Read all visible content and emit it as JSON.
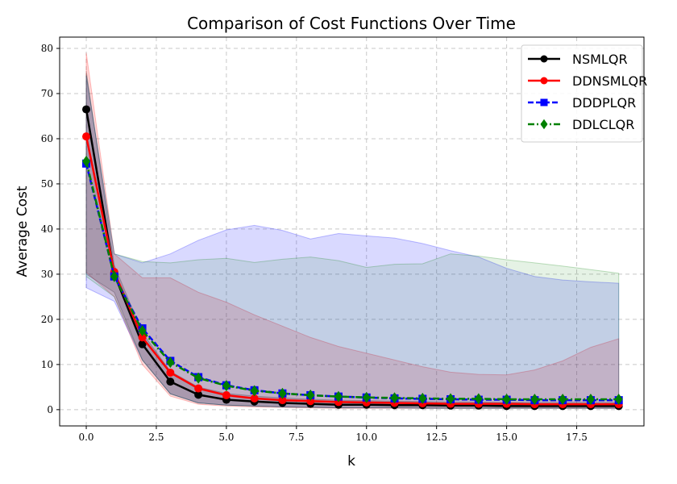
{
  "chart_data": {
    "type": "line",
    "title": "Comparison of Cost Functions Over Time",
    "xlabel": "k",
    "ylabel": "Average Cost",
    "xlim": [
      -0.95,
      19.9
    ],
    "ylim": [
      -3.6,
      82.5
    ],
    "xticks": [
      "0.0",
      "2.5",
      "5.0",
      "7.5",
      "10.0",
      "12.5",
      "15.0",
      "17.5"
    ],
    "yticks": [
      "0",
      "10",
      "20",
      "30",
      "40",
      "50",
      "60",
      "70",
      "80"
    ],
    "grid": true,
    "legend_position": "top-right",
    "x": [
      0,
      1,
      2,
      3,
      4,
      5,
      6,
      7,
      8,
      9,
      10,
      11,
      12,
      13,
      14,
      15,
      16,
      17,
      18,
      19
    ],
    "series": [
      {
        "name": "NSMLQR",
        "color": "#000000",
        "linestyle": "solid",
        "marker": "circle",
        "values": [
          66.5,
          30,
          14.5,
          6.2,
          3.3,
          2.2,
          1.8,
          1.5,
          1.3,
          1.1,
          1.1,
          1.0,
          1.0,
          0.9,
          0.9,
          0.8,
          0.8,
          0.8,
          0.8,
          0.8
        ],
        "band_upper": [
          75,
          32,
          17,
          8.5,
          5,
          3.6,
          3,
          2.6,
          2.3,
          2.1,
          2,
          1.9,
          1.8,
          1.7,
          1.7,
          1.6,
          1.6,
          1.6,
          1.6,
          1.6
        ],
        "band_lower": [
          30,
          26,
          11,
          3.5,
          1.5,
          1,
          0.8,
          0.6,
          0.5,
          0.4,
          0.4,
          0.4,
          0.3,
          0.3,
          0.3,
          0.3,
          0.3,
          0.3,
          0.3,
          0.3
        ]
      },
      {
        "name": "DDNSMLQR",
        "color": "#ff0000",
        "linestyle": "solid",
        "marker": "circle",
        "values": [
          60.5,
          30.5,
          16,
          8.2,
          4.7,
          3.2,
          2.5,
          2.1,
          1.9,
          1.7,
          1.6,
          1.5,
          1.4,
          1.3,
          1.3,
          1.3,
          1.2,
          1.2,
          1.2,
          1.2
        ],
        "band_upper": [
          79,
          34.5,
          29.2,
          29.2,
          26,
          23.8,
          21,
          18.5,
          16,
          14,
          12.5,
          11,
          9.5,
          8.3,
          7.8,
          7.7,
          8.8,
          10.8,
          13.8,
          15.7
        ],
        "band_lower": [
          30.4,
          25,
          10,
          3,
          1.2,
          0.8,
          0.6,
          0.5,
          0.4,
          0.3,
          0.3,
          0.3,
          0.3,
          0.3,
          0.3,
          0.3,
          0.3,
          0.3,
          0.3,
          0.3
        ]
      },
      {
        "name": "DDDPLQR",
        "color": "#0000ff",
        "linestyle": "dashed",
        "marker": "square",
        "values": [
          54.5,
          29.5,
          18,
          10.8,
          7.2,
          5.4,
          4.3,
          3.6,
          3.2,
          2.9,
          2.7,
          2.5,
          2.4,
          2.3,
          2.2,
          2.2,
          2.1,
          2.1,
          2.1,
          2.1
        ],
        "band_upper": [
          74,
          34.5,
          32.5,
          34.5,
          37.5,
          39.8,
          40.8,
          39.7,
          37.8,
          39,
          38.5,
          38,
          36.8,
          35.2,
          33.8,
          31.3,
          29.5,
          28.7,
          28.3,
          28
        ],
        "band_lower": [
          27,
          24,
          11,
          3.5,
          1.5,
          1,
          0.8,
          0.6,
          0.5,
          0.4,
          0.4,
          0.4,
          0.3,
          0.3,
          0.3,
          0.3,
          0.3,
          0.3,
          0.3,
          0.3
        ]
      },
      {
        "name": "DDLCLQR",
        "color": "#008000",
        "linestyle": "dashdot",
        "marker": "diamond",
        "values": [
          55,
          29.5,
          17.5,
          10.5,
          7.0,
          5.3,
          4.2,
          3.6,
          3.2,
          2.9,
          2.7,
          2.6,
          2.5,
          2.4,
          2.4,
          2.3,
          2.3,
          2.3,
          2.3,
          2.3
        ],
        "band_upper": [
          74,
          34.5,
          32.8,
          32.5,
          33.2,
          33.5,
          32.6,
          33.3,
          33.8,
          33,
          31.5,
          32.2,
          32.3,
          34.5,
          34,
          33.2,
          32.5,
          31.8,
          31,
          30.2
        ],
        "band_lower": [
          29.5,
          25,
          11,
          3.5,
          1.5,
          1,
          0.8,
          0.6,
          0.5,
          0.4,
          0.4,
          0.4,
          0.3,
          0.3,
          0.3,
          0.3,
          0.3,
          0.3,
          0.3,
          0.3
        ]
      }
    ]
  }
}
